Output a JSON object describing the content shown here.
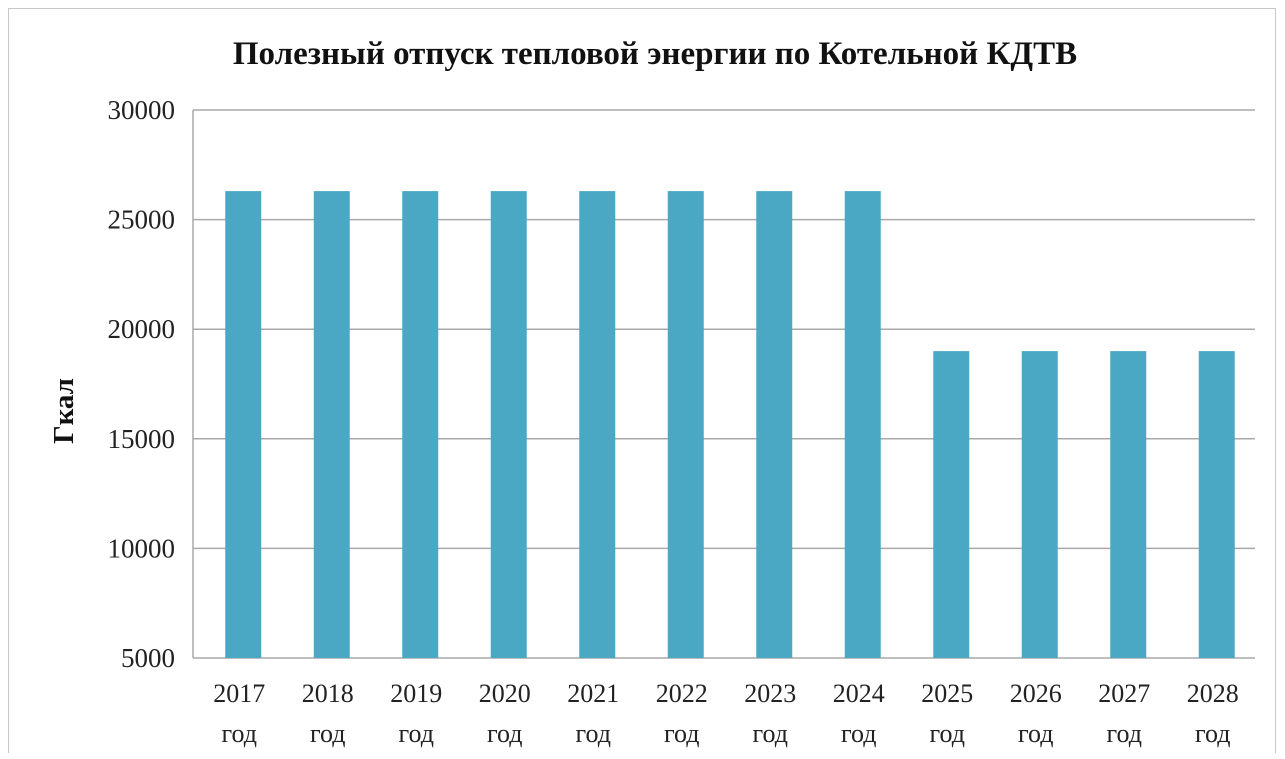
{
  "chart_data": {
    "type": "bar",
    "title": "Полезный отпуск тепловой энергии по Котельной КДТВ",
    "xlabel": "",
    "ylabel": "Гкал",
    "ylim": [
      5000,
      30000
    ],
    "yticks": [
      5000,
      10000,
      15000,
      20000,
      25000,
      30000
    ],
    "grid": true,
    "categories": [
      "2017 год",
      "2018 год",
      "2019 год",
      "2020 год",
      "2021 год",
      "2022 год",
      "2023 год",
      "2024 год",
      "2025 год",
      "2026 год",
      "2027 год",
      "2028 год"
    ],
    "category_lines": [
      [
        "2017",
        "год"
      ],
      [
        "2018",
        "год"
      ],
      [
        "2019",
        "год"
      ],
      [
        "2020",
        "год"
      ],
      [
        "2021",
        "год"
      ],
      [
        "2022",
        "год"
      ],
      [
        "2023",
        "год"
      ],
      [
        "2024",
        "год"
      ],
      [
        "2025",
        "год"
      ],
      [
        "2026",
        "год"
      ],
      [
        "2027",
        "год"
      ],
      [
        "2028",
        "год"
      ]
    ],
    "values": [
      26300,
      26300,
      26300,
      26300,
      26300,
      26300,
      26300,
      26300,
      19000,
      19000,
      19000,
      19000
    ],
    "bar_color": "#4aa8c4"
  }
}
